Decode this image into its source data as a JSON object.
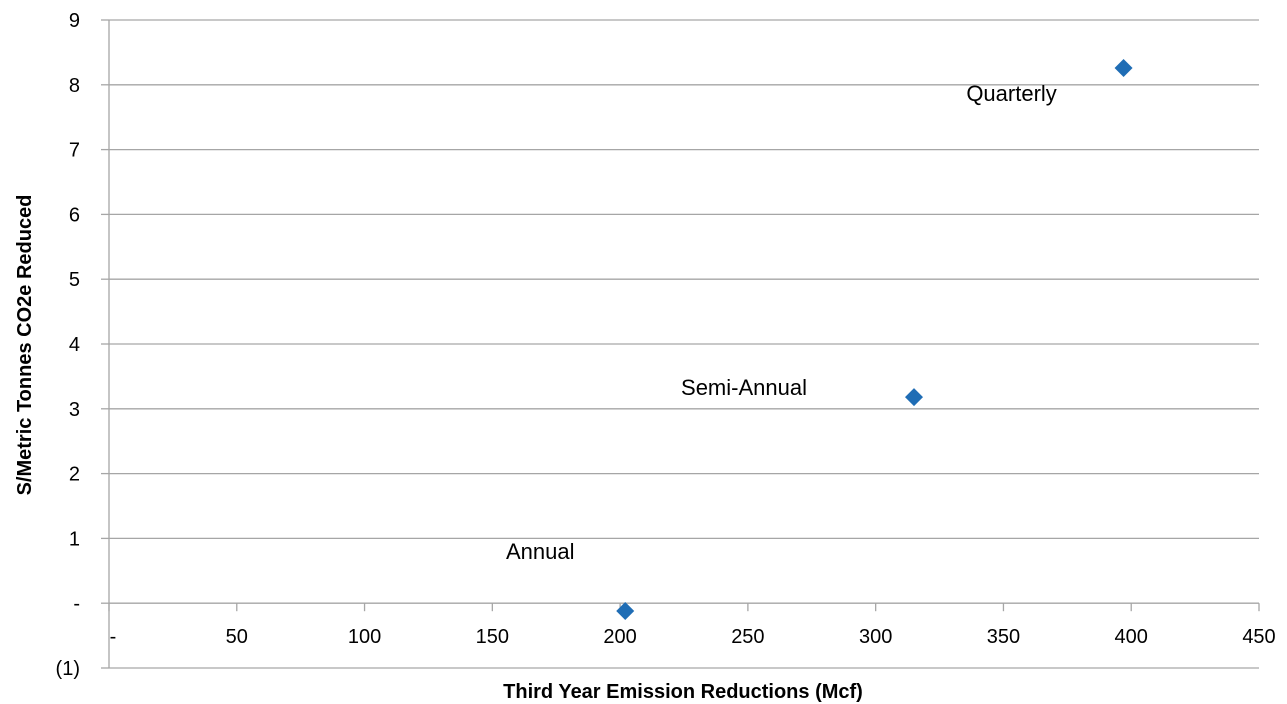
{
  "chart_data": {
    "type": "scatter",
    "xlabel": "Third Year Emission Reductions (Mcf)",
    "ylabel": "S/Metric Tonnes CO2e Reduced",
    "xlim": [
      0,
      450
    ],
    "ylim": [
      -1,
      9
    ],
    "x_ticks": [
      {
        "value": 0,
        "label": "-"
      },
      {
        "value": 50,
        "label": "50"
      },
      {
        "value": 100,
        "label": "100"
      },
      {
        "value": 150,
        "label": "150"
      },
      {
        "value": 200,
        "label": "200"
      },
      {
        "value": 250,
        "label": "250"
      },
      {
        "value": 300,
        "label": "300"
      },
      {
        "value": 350,
        "label": "350"
      },
      {
        "value": 400,
        "label": "400"
      },
      {
        "value": 450,
        "label": "450"
      }
    ],
    "y_ticks": [
      {
        "value": -1,
        "label": "(1)"
      },
      {
        "value": 0,
        "label": "-"
      },
      {
        "value": 1,
        "label": "1"
      },
      {
        "value": 2,
        "label": "2"
      },
      {
        "value": 3,
        "label": "3"
      },
      {
        "value": 4,
        "label": "4"
      },
      {
        "value": 5,
        "label": "5"
      },
      {
        "value": 6,
        "label": "6"
      },
      {
        "value": 7,
        "label": "7"
      },
      {
        "value": 8,
        "label": "8"
      },
      {
        "value": 9,
        "label": "9"
      }
    ],
    "grid": "horizontal",
    "legend": "none",
    "marker_color": "#1f6db5",
    "grid_color": "#a6a6a6",
    "points": [
      {
        "label": "Annual",
        "x": 202,
        "y": -0.12
      },
      {
        "label": "Semi-Annual",
        "x": 315,
        "y": 3.18
      },
      {
        "label": "Quarterly",
        "x": 397,
        "y": 8.26
      }
    ]
  }
}
